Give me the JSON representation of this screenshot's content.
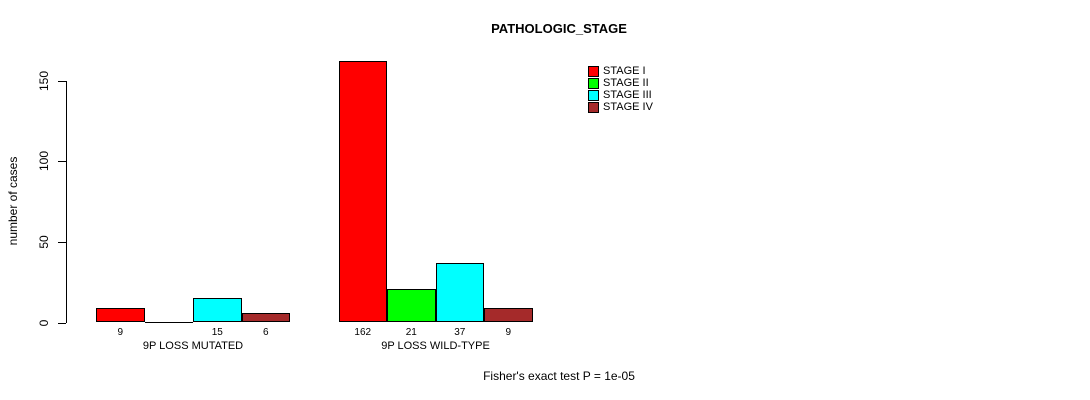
{
  "title": "PATHOLOGIC_STAGE",
  "chart_data": {
    "type": "bar",
    "title": "PATHOLOGIC_STAGE",
    "xlabel": "",
    "ylabel": "number of cases",
    "ylim": [
      0,
      150
    ],
    "yticks": [
      0,
      50,
      100,
      150
    ],
    "grid": false,
    "legend_position": "top-right",
    "categories": [
      "9P LOSS MUTATED",
      "9P LOSS WILD-TYPE"
    ],
    "series": [
      {
        "name": "STAGE I",
        "color": "#FF0000",
        "values": [
          9,
          162
        ]
      },
      {
        "name": "STAGE II",
        "color": "#00FF00",
        "values": [
          0,
          21
        ]
      },
      {
        "name": "STAGE III",
        "color": "#00FFFF",
        "values": [
          15,
          37
        ]
      },
      {
        "name": "STAGE IV",
        "color": "#A52A2A",
        "values": [
          6,
          9
        ]
      }
    ],
    "bar_labels": [
      [
        "9",
        "",
        "15",
        "6"
      ],
      [
        "162",
        "21",
        "37",
        "9"
      ]
    ],
    "annotation": "Fisher's exact test P = 1e-05"
  },
  "legend": {
    "items": [
      {
        "label": "STAGE I",
        "color": "#FF0000"
      },
      {
        "label": "STAGE II",
        "color": "#00FF00"
      },
      {
        "label": "STAGE III",
        "color": "#00FFFF"
      },
      {
        "label": "STAGE IV",
        "color": "#A52A2A"
      }
    ]
  },
  "footer": {
    "note": "Fisher's exact test P = 1e-05"
  }
}
